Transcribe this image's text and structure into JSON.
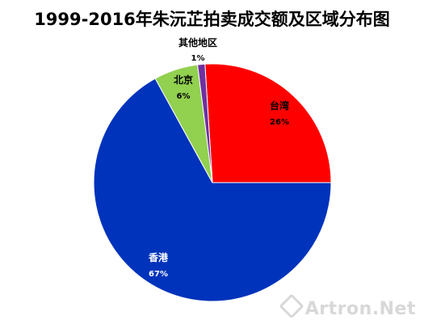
{
  "chart_data": {
    "type": "pie",
    "title": "1999-2016年朱沅芷拍卖成交额及区域分布图",
    "slices": [
      {
        "label": "台湾",
        "pct_text": "26%",
        "value": 26,
        "color": "#ff0000",
        "label_color": "#000000"
      },
      {
        "label": "香港",
        "pct_text": "67%",
        "value": 67,
        "color": "#0033bb",
        "label_color": "#ffffff"
      },
      {
        "label": "北京",
        "pct_text": "6%",
        "value": 6,
        "color": "#92d050",
        "label_color": "#000000"
      },
      {
        "label": "其他地区",
        "pct_text": "1%",
        "value": 1,
        "color": "#7030a0",
        "label_color": "#000000"
      }
    ],
    "legend": "none"
  },
  "watermark": {
    "text": "Artron.Net"
  }
}
